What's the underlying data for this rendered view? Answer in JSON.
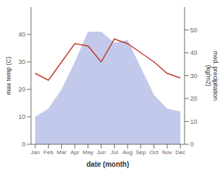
{
  "chart_data": {
    "type": "area",
    "categories": [
      "Jan",
      "Feb",
      "Mar",
      "Apr",
      "May",
      "Jun",
      "Jul",
      "Aug",
      "Sep",
      "Oct",
      "Nov",
      "Dec"
    ],
    "xlabel": "date (month)",
    "ylabel": "max temp (C)",
    "y2label": "med. precipitation\n(kg/m2)",
    "series": [
      {
        "type": "area",
        "color": "#b8bfe8",
        "values": [
          10,
          13,
          20,
          30,
          41,
          41,
          37,
          38,
          28,
          18,
          13,
          12
        ]
      },
      {
        "type": "line",
        "color": "#c0392b",
        "axis": "y2",
        "values": [
          31,
          28,
          36,
          44,
          43,
          36,
          46,
          44,
          40,
          36,
          31,
          29
        ]
      }
    ],
    "ylim": [
      0,
      50
    ],
    "yticks": [
      0,
      10,
      20,
      30,
      40
    ],
    "y2lim": [
      0,
      60
    ],
    "y2ticks": [
      0,
      10,
      20,
      30,
      40,
      50
    ],
    "grid": false
  }
}
